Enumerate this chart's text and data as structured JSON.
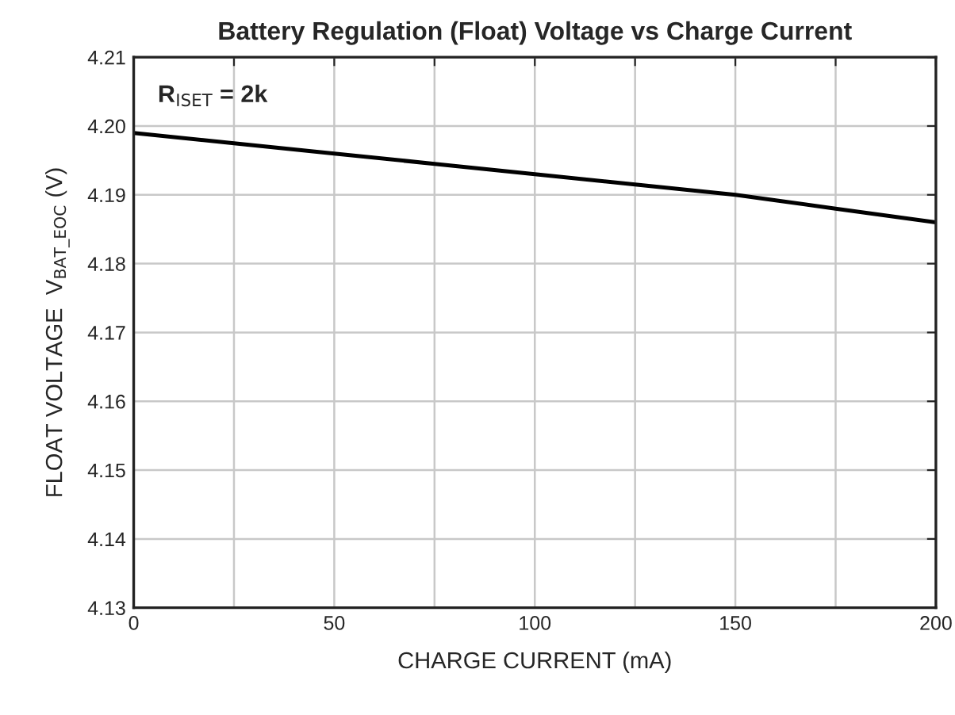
{
  "chart_data": {
    "type": "line",
    "title": "Battery Regulation (Float) Voltage vs Charge Current",
    "xlabel": "CHARGE CURRENT (mA)",
    "ylabel": "FLOAT VOLTAGE  V$_{BAT_EOC}$ (V)",
    "annotations": [
      "R$_{ISET}$ = 2k"
    ],
    "x": [
      0,
      25,
      50,
      75,
      100,
      125,
      150,
      175,
      200
    ],
    "series": [
      {
        "color": "#000000",
        "values": [
          4.199,
          4.1975,
          4.196,
          4.1945,
          4.193,
          4.1915,
          4.19,
          4.188,
          4.186
        ]
      }
    ],
    "xlim": [
      0,
      200
    ],
    "ylim": [
      4.13,
      4.21
    ],
    "xticks": [
      0,
      {
        "value": 25,
        "label": null
      },
      50,
      {
        "value": 75,
        "label": null
      },
      100,
      {
        "value": 125,
        "label": null
      },
      150,
      {
        "value": 175,
        "label": null
      },
      200
    ],
    "yticks": [
      4.13,
      4.14,
      4.15,
      4.16,
      4.17,
      4.18,
      4.19,
      {
        "value": 4.2,
        "label": "4.20"
      },
      4.21
    ],
    "grid": true,
    "marker": "none",
    "line_style": "solid"
  }
}
